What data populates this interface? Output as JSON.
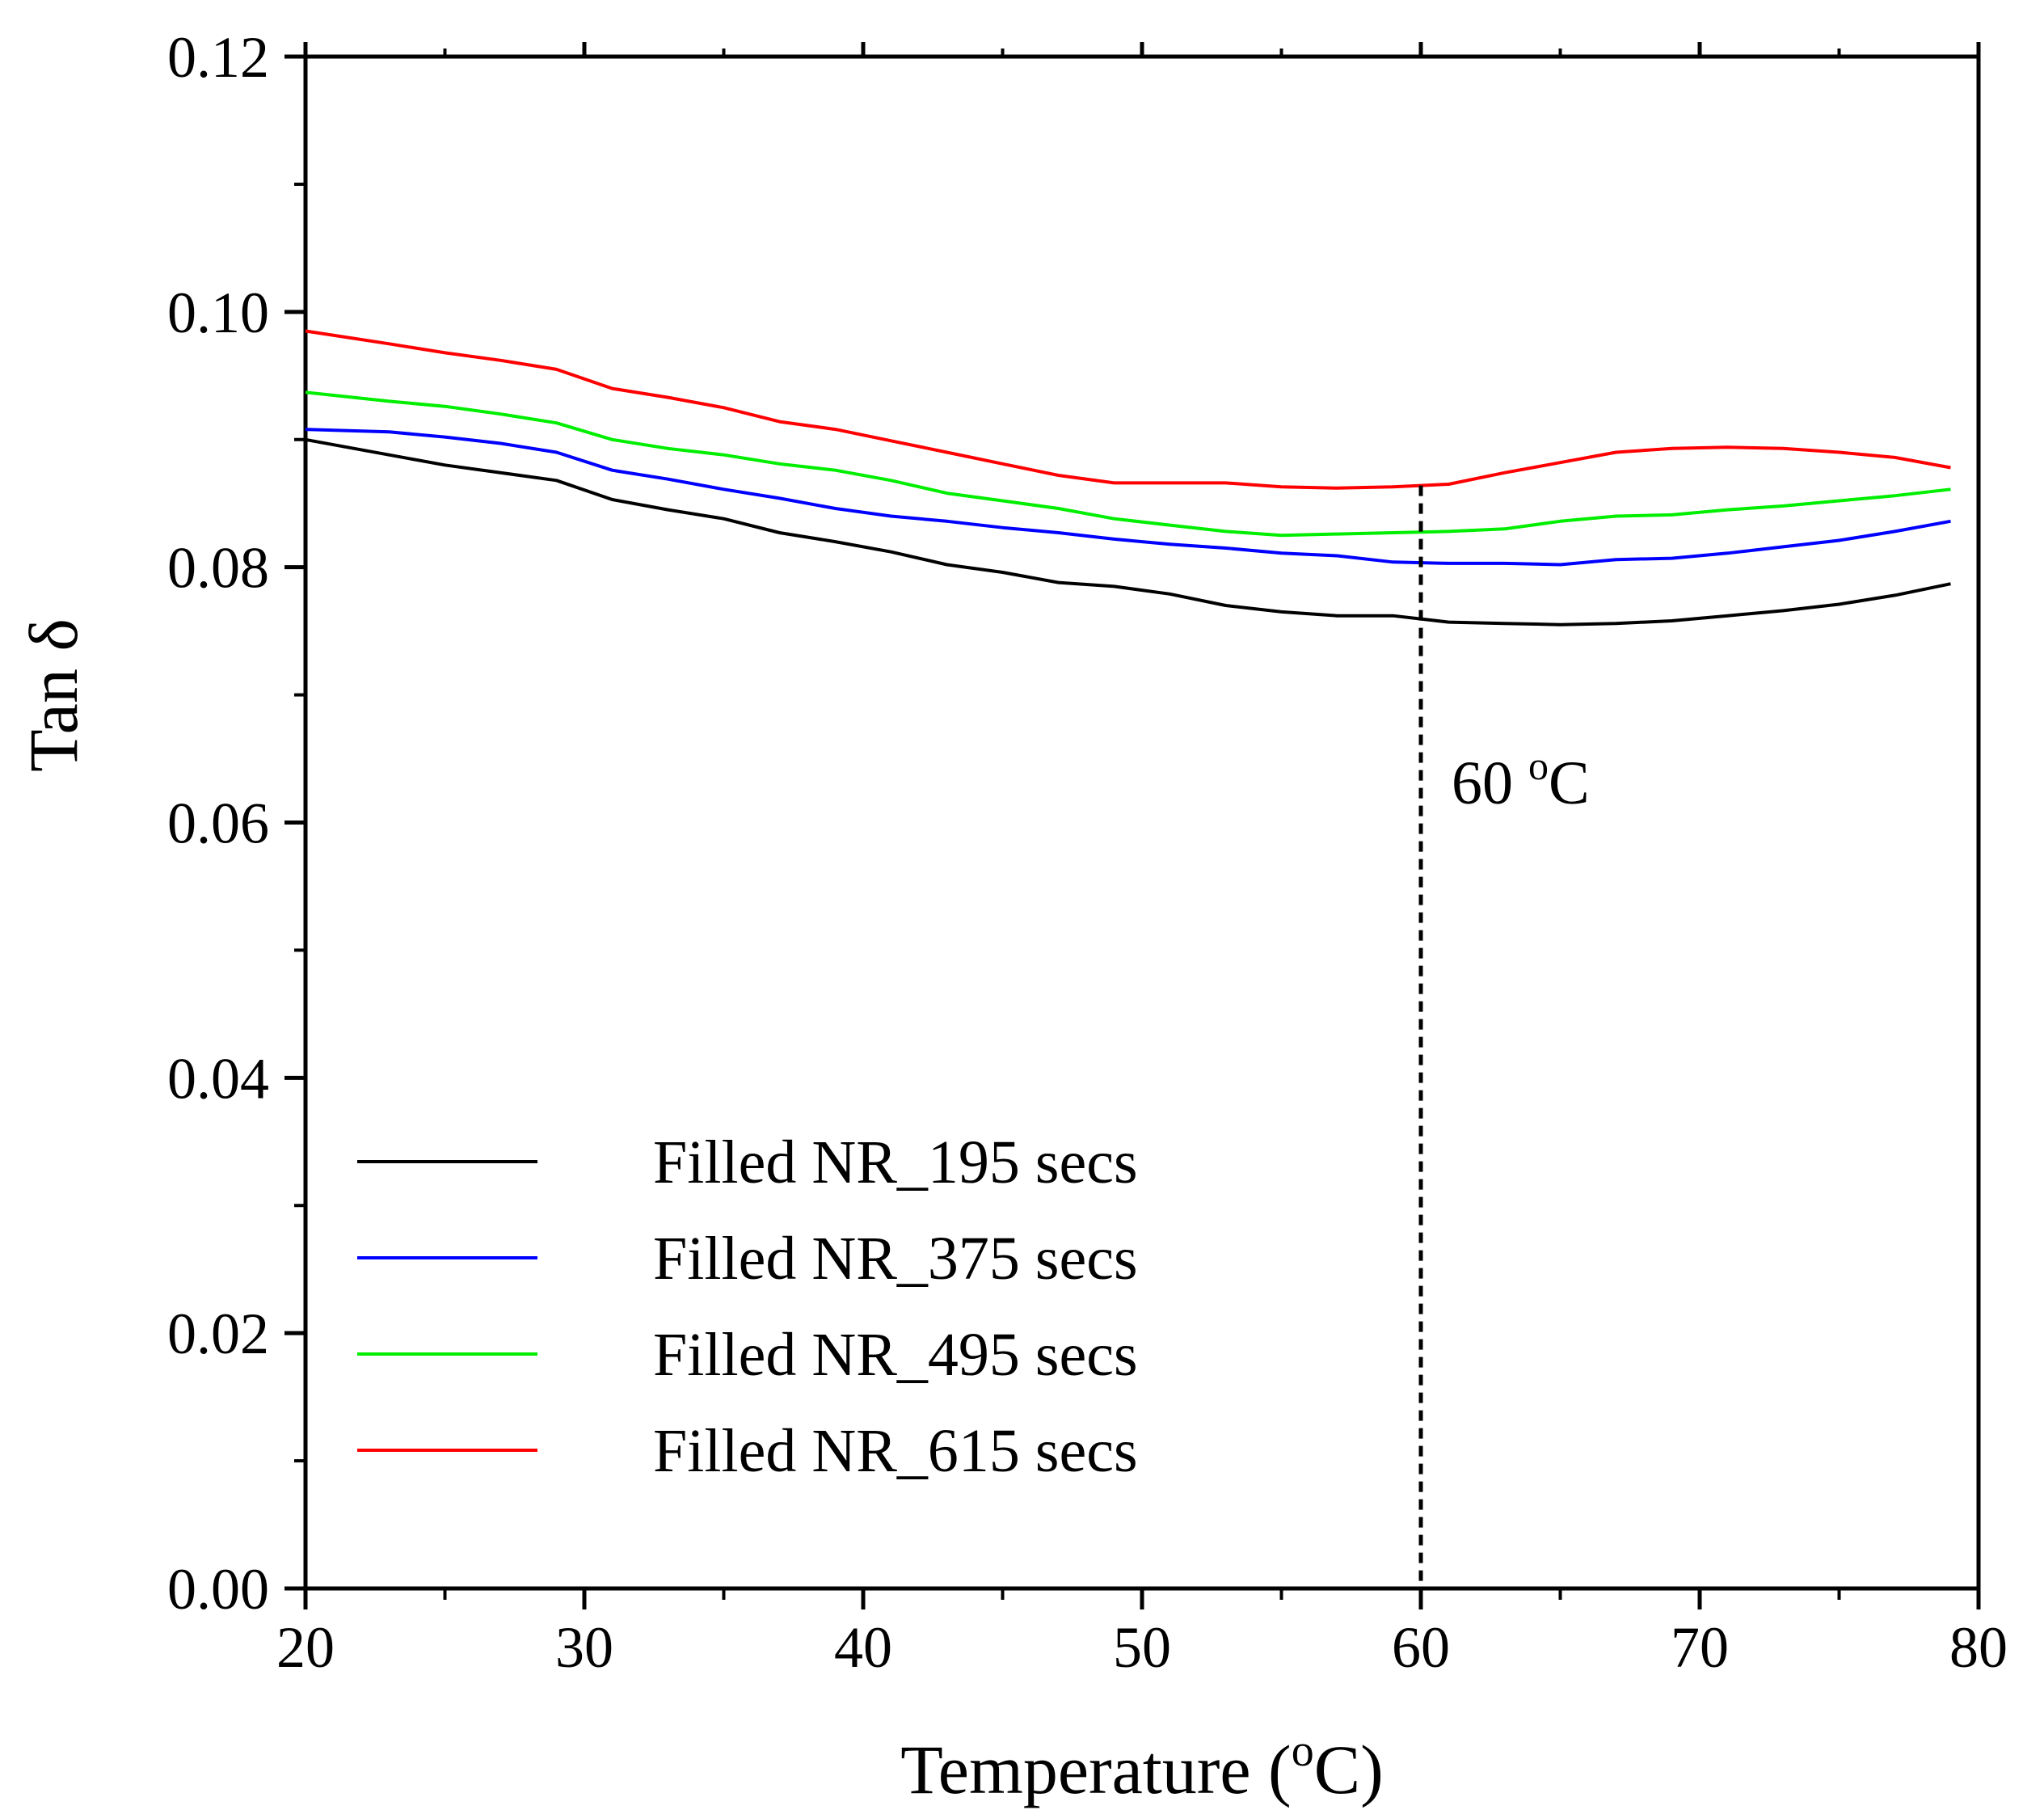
{
  "chart_data": {
    "type": "line",
    "title": "",
    "xlabel": "Temperature (°C)",
    "xlabel_prefix": "Temperature (",
    "xlabel_super": "o",
    "xlabel_suffix": "C)",
    "ylabel": "Tan δ",
    "xlim": [
      20,
      80
    ],
    "ylim": [
      0,
      0.12
    ],
    "x_ticks": [
      20,
      30,
      40,
      50,
      60,
      70,
      80
    ],
    "x_tick_labels": [
      "20",
      "30",
      "40",
      "50",
      "60",
      "70",
      "80"
    ],
    "y_ticks": [
      0,
      0.02,
      0.04,
      0.06,
      0.08,
      0.1,
      0.12
    ],
    "y_tick_labels": [
      "0.00",
      "0.02",
      "0.04",
      "0.06",
      "0.08",
      "0.10",
      "0.12"
    ],
    "grid": false,
    "legend_position": "lower-left",
    "annotation": {
      "x": 60,
      "text": "60 °C",
      "text_main": "60 ",
      "text_super": "o",
      "text_suffix": "C"
    },
    "series": [
      {
        "name": "Filled NR_195 secs",
        "color": "#000000",
        "points": [
          [
            20,
            0.09
          ],
          [
            25,
            0.088
          ],
          [
            29,
            0.0868
          ],
          [
            31,
            0.0853
          ],
          [
            33,
            0.0845
          ],
          [
            35,
            0.0838
          ],
          [
            37,
            0.0827
          ],
          [
            39,
            0.082
          ],
          [
            41,
            0.0812
          ],
          [
            43,
            0.0802
          ],
          [
            45,
            0.0796
          ],
          [
            47,
            0.0788
          ],
          [
            49,
            0.0785
          ],
          [
            51,
            0.0779
          ],
          [
            53,
            0.077
          ],
          [
            55,
            0.0765
          ],
          [
            57,
            0.0762
          ],
          [
            59,
            0.0762
          ],
          [
            61,
            0.0757
          ],
          [
            63,
            0.0756
          ],
          [
            65,
            0.0755
          ],
          [
            67,
            0.0756
          ],
          [
            69,
            0.0758
          ],
          [
            71,
            0.0762
          ],
          [
            73,
            0.0766
          ],
          [
            75,
            0.0771
          ],
          [
            77,
            0.0778
          ],
          [
            79,
            0.0787
          ]
        ]
      },
      {
        "name": "Filled NR_375 secs",
        "color": "#0000ff",
        "points": [
          [
            20,
            0.0908
          ],
          [
            23,
            0.0906
          ],
          [
            25,
            0.0902
          ],
          [
            27,
            0.0897
          ],
          [
            29,
            0.089
          ],
          [
            31,
            0.0876
          ],
          [
            33,
            0.0869
          ],
          [
            35,
            0.0861
          ],
          [
            37,
            0.0854
          ],
          [
            39,
            0.0846
          ],
          [
            41,
            0.084
          ],
          [
            43,
            0.0836
          ],
          [
            45,
            0.0831
          ],
          [
            47,
            0.0827
          ],
          [
            49,
            0.0822
          ],
          [
            51,
            0.0818
          ],
          [
            53,
            0.0815
          ],
          [
            55,
            0.0811
          ],
          [
            57,
            0.0809
          ],
          [
            59,
            0.0804
          ],
          [
            61,
            0.0803
          ],
          [
            63,
            0.0803
          ],
          [
            65,
            0.0802
          ],
          [
            67,
            0.0806
          ],
          [
            69,
            0.0807
          ],
          [
            71,
            0.0811
          ],
          [
            73,
            0.0816
          ],
          [
            75,
            0.0821
          ],
          [
            77,
            0.0828
          ],
          [
            79,
            0.0836
          ]
        ]
      },
      {
        "name": "Filled NR_495 secs",
        "color": "#00ee00",
        "points": [
          [
            20,
            0.0937
          ],
          [
            23,
            0.093
          ],
          [
            25,
            0.0926
          ],
          [
            27,
            0.092
          ],
          [
            29,
            0.0913
          ],
          [
            31,
            0.09
          ],
          [
            33,
            0.0893
          ],
          [
            35,
            0.0888
          ],
          [
            37,
            0.0881
          ],
          [
            39,
            0.0876
          ],
          [
            41,
            0.0868
          ],
          [
            43,
            0.0858
          ],
          [
            45,
            0.0852
          ],
          [
            47,
            0.0846
          ],
          [
            49,
            0.0838
          ],
          [
            51,
            0.0833
          ],
          [
            53,
            0.0828
          ],
          [
            55,
            0.0825
          ],
          [
            57,
            0.0826
          ],
          [
            59,
            0.0827
          ],
          [
            61,
            0.0828
          ],
          [
            63,
            0.083
          ],
          [
            65,
            0.0836
          ],
          [
            67,
            0.084
          ],
          [
            69,
            0.0841
          ],
          [
            71,
            0.0845
          ],
          [
            73,
            0.0848
          ],
          [
            75,
            0.0852
          ],
          [
            77,
            0.0856
          ],
          [
            79,
            0.0861
          ]
        ]
      },
      {
        "name": "Filled NR_615 secs",
        "color": "#ff0000",
        "points": [
          [
            20,
            0.0985
          ],
          [
            23,
            0.0975
          ],
          [
            25,
            0.0968
          ],
          [
            27,
            0.0962
          ],
          [
            29,
            0.0955
          ],
          [
            31,
            0.094
          ],
          [
            33,
            0.0933
          ],
          [
            35,
            0.0925
          ],
          [
            37,
            0.0914
          ],
          [
            39,
            0.0908
          ],
          [
            41,
            0.0899
          ],
          [
            43,
            0.089
          ],
          [
            45,
            0.0881
          ],
          [
            47,
            0.0872
          ],
          [
            49,
            0.0866
          ],
          [
            51,
            0.0866
          ],
          [
            53,
            0.0866
          ],
          [
            55,
            0.0863
          ],
          [
            57,
            0.0862
          ],
          [
            59,
            0.0863
          ],
          [
            61,
            0.0865
          ],
          [
            63,
            0.0874
          ],
          [
            65,
            0.0882
          ],
          [
            67,
            0.089
          ],
          [
            69,
            0.0893
          ],
          [
            71,
            0.0894
          ],
          [
            73,
            0.0893
          ],
          [
            75,
            0.089
          ],
          [
            77,
            0.0886
          ],
          [
            79,
            0.0878
          ]
        ]
      }
    ]
  }
}
